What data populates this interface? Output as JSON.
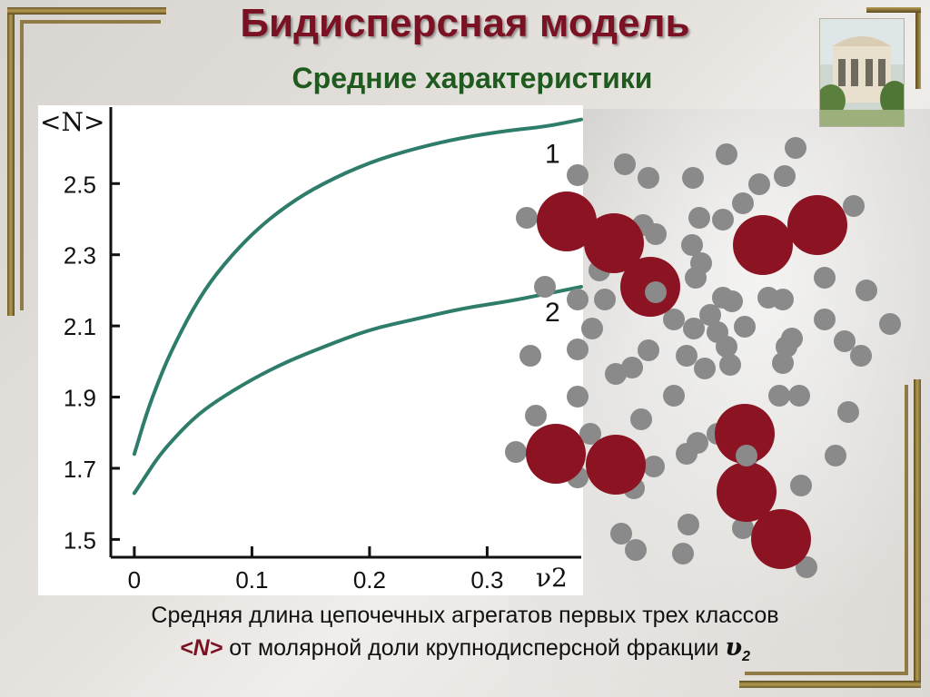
{
  "slide": {
    "title": "Бидисперсная модель",
    "subtitle": "Средние характеристики",
    "caption_line1": "Средняя длина цепочечных агрегатов первых трех классов",
    "caption_n": "<N>",
    "caption_line2": "от молярной доли крупнодисперсной фракции",
    "caption_nu": "υ",
    "caption_nu_sub": "2"
  },
  "colors": {
    "title": "#7a1224",
    "subtitle": "#1f5a1f",
    "curve": "#2e7d6b",
    "large_particle": "#8b1322",
    "small_particle": "#8a8a8a"
  },
  "chart_data": {
    "type": "line",
    "ylabel": "<N>",
    "xlabel": "ν2",
    "xlim": [
      -0.02,
      0.38
    ],
    "ylim": [
      1.45,
      2.72
    ],
    "x_ticks": [
      0,
      0.1,
      0.2,
      0.3
    ],
    "x_tick_labels": [
      "0",
      "0.1",
      "0.2",
      "0.3"
    ],
    "y_ticks": [
      1.5,
      1.7,
      1.9,
      2.1,
      2.3,
      2.5
    ],
    "y_tick_labels": [
      "1.5",
      "1.7",
      "1.9",
      "2.1",
      "2.3",
      "2.5"
    ],
    "grid": false,
    "series": [
      {
        "name": "1",
        "x": [
          0,
          0.01,
          0.02,
          0.03,
          0.05,
          0.07,
          0.1,
          0.13,
          0.16,
          0.2,
          0.24,
          0.28,
          0.32,
          0.35,
          0.38
        ],
        "y": [
          1.74,
          1.85,
          1.94,
          2.02,
          2.15,
          2.25,
          2.36,
          2.44,
          2.5,
          2.56,
          2.6,
          2.63,
          2.65,
          2.66,
          2.68
        ]
      },
      {
        "name": "2",
        "x": [
          0,
          0.01,
          0.02,
          0.03,
          0.05,
          0.07,
          0.1,
          0.13,
          0.16,
          0.2,
          0.24,
          0.28,
          0.32,
          0.35,
          0.38
        ],
        "y": [
          1.63,
          1.68,
          1.73,
          1.77,
          1.84,
          1.89,
          1.95,
          2.0,
          2.04,
          2.09,
          2.12,
          2.15,
          2.17,
          2.19,
          2.21
        ]
      }
    ]
  }
}
